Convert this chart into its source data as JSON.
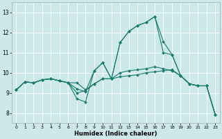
{
  "xlabel": "Humidex (Indice chaleur)",
  "background_color": "#cce8e8",
  "grid_color": "#ffffff",
  "line_color": "#1a7a6e",
  "xlim": [
    -0.5,
    23.5
  ],
  "ylim": [
    7.5,
    13.5
  ],
  "xticks": [
    0,
    1,
    2,
    3,
    4,
    5,
    6,
    7,
    8,
    9,
    10,
    11,
    12,
    13,
    14,
    15,
    16,
    17,
    18,
    19,
    20,
    21,
    22,
    23
  ],
  "yticks": [
    8,
    9,
    10,
    11,
    12,
    13
  ],
  "series": [
    [
      9.15,
      9.55,
      9.5,
      9.65,
      9.7,
      9.6,
      9.5,
      8.7,
      8.55,
      10.1,
      10.5,
      9.7,
      11.5,
      12.05,
      12.35,
      12.5,
      12.8,
      11.55,
      10.9,
      9.85,
      9.45,
      9.35,
      9.35,
      7.9
    ],
    [
      9.15,
      9.55,
      9.5,
      9.65,
      9.7,
      9.6,
      9.5,
      9.5,
      9.15,
      9.45,
      9.7,
      9.7,
      9.8,
      9.85,
      9.9,
      10.0,
      10.05,
      10.1,
      10.15,
      9.85,
      9.45,
      9.35,
      9.35,
      7.9
    ],
    [
      9.15,
      9.55,
      9.5,
      9.65,
      9.7,
      9.6,
      9.5,
      9.2,
      9.05,
      10.1,
      10.5,
      9.7,
      11.5,
      12.05,
      12.35,
      12.5,
      12.8,
      11.0,
      10.9,
      9.85,
      9.45,
      9.35,
      9.35,
      7.9
    ],
    [
      9.15,
      9.55,
      9.5,
      9.65,
      9.7,
      9.6,
      9.5,
      9.0,
      9.1,
      9.45,
      9.7,
      9.7,
      10.0,
      10.1,
      10.15,
      10.2,
      10.3,
      10.2,
      10.1,
      9.85,
      9.45,
      9.35,
      9.35,
      7.9
    ]
  ]
}
